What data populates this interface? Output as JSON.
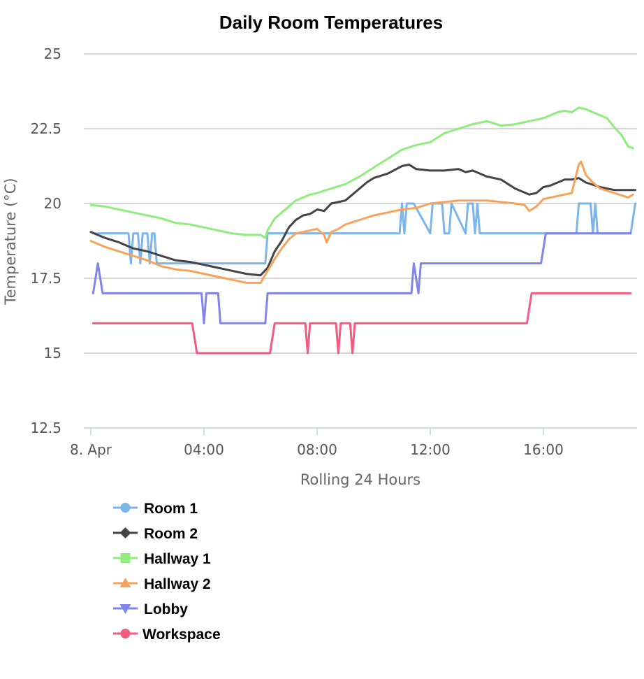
{
  "chart_data": {
    "type": "line",
    "title": "Daily Room Temperatures",
    "xlabel": "Rolling 24 Hours",
    "ylabel": "Temperature (°C)",
    "ylim": [
      12.5,
      25
    ],
    "y_ticks": [
      12.5,
      15,
      17.5,
      20,
      22.5,
      25
    ],
    "y_tick_labels": [
      "12.5",
      "15",
      "17.5",
      "20",
      "22.5",
      "25"
    ],
    "xlim": [
      "00:00",
      "19:20"
    ],
    "x_ticks": [
      "00:00",
      "04:00",
      "08:00",
      "12:00",
      "16:00"
    ],
    "x_tick_labels": [
      "8. Apr",
      "04:00",
      "08:00",
      "12:00",
      "16:00"
    ],
    "grid": true,
    "legend_position": "bottom-left",
    "series": [
      {
        "name": "Room 1",
        "color": "#7cb5ec",
        "marker": "circle",
        "x": [
          "00:05",
          "01:20",
          "01:25",
          "01:30",
          "01:35",
          "01:40",
          "01:45",
          "01:50",
          "01:55",
          "02:00",
          "02:05",
          "02:10",
          "02:15",
          "02:20",
          "02:25",
          "02:30",
          "02:35",
          "02:40",
          "06:10",
          "06:15",
          "10:55",
          "11:00",
          "11:05",
          "11:10",
          "11:20",
          "11:25",
          "12:00",
          "12:05",
          "12:25",
          "12:30",
          "12:40",
          "12:45",
          "13:15",
          "13:20",
          "13:30",
          "13:35",
          "13:40",
          "13:45",
          "13:50",
          "13:55",
          "17:10",
          "17:15",
          "17:40",
          "17:45",
          "17:50",
          "17:55",
          "18:00",
          "18:05",
          "19:05",
          "19:15"
        ],
        "y": [
          19,
          19,
          18,
          19,
          19,
          19,
          18,
          19,
          19,
          19,
          18,
          19,
          19,
          18,
          18,
          18,
          18,
          18,
          18,
          19,
          19,
          20,
          19,
          20,
          20,
          20,
          19,
          20,
          20,
          19,
          19,
          20,
          19,
          20,
          20,
          19,
          20,
          19,
          19,
          19,
          19,
          20,
          20,
          19,
          20,
          19,
          19,
          19,
          19,
          20
        ]
      },
      {
        "name": "Room 2",
        "color": "#434348",
        "marker": "diamond",
        "x": [
          "00:00",
          "00:30",
          "01:00",
          "01:30",
          "02:00",
          "02:30",
          "03:00",
          "03:30",
          "04:00",
          "04:30",
          "05:00",
          "05:30",
          "06:00",
          "06:15",
          "06:30",
          "06:45",
          "07:00",
          "07:15",
          "07:30",
          "07:45",
          "08:00",
          "08:15",
          "08:30",
          "08:45",
          "09:00",
          "09:30",
          "09:45",
          "10:00",
          "10:30",
          "11:00",
          "11:15",
          "11:30",
          "12:00",
          "12:30",
          "13:00",
          "13:15",
          "13:30",
          "14:00",
          "14:30",
          "15:00",
          "15:30",
          "15:45",
          "16:00",
          "16:15",
          "16:30",
          "16:45",
          "17:00",
          "17:15",
          "17:30",
          "18:00",
          "18:30",
          "19:00",
          "19:15"
        ],
        "y": [
          19.05,
          18.85,
          18.7,
          18.5,
          18.4,
          18.25,
          18.1,
          18.05,
          17.95,
          17.85,
          17.75,
          17.65,
          17.6,
          17.85,
          18.4,
          18.75,
          19.2,
          19.45,
          19.6,
          19.65,
          19.8,
          19.75,
          20.0,
          20.05,
          20.1,
          20.5,
          20.7,
          20.85,
          21.0,
          21.25,
          21.3,
          21.15,
          21.1,
          21.1,
          21.15,
          21.05,
          21.1,
          20.9,
          20.8,
          20.5,
          20.3,
          20.35,
          20.55,
          20.6,
          20.7,
          20.8,
          20.8,
          20.85,
          20.7,
          20.55,
          20.45,
          20.45,
          20.45
        ]
      },
      {
        "name": "Hallway 1",
        "color": "#90ed7d",
        "marker": "square",
        "x": [
          "00:00",
          "00:30",
          "01:00",
          "01:30",
          "02:00",
          "02:30",
          "03:00",
          "03:30",
          "04:00",
          "04:30",
          "05:00",
          "05:30",
          "06:00",
          "06:10",
          "06:15",
          "06:30",
          "07:00",
          "07:15",
          "07:30",
          "07:45",
          "08:00",
          "08:30",
          "09:00",
          "09:30",
          "10:00",
          "10:30",
          "11:00",
          "11:30",
          "12:00",
          "12:30",
          "13:00",
          "13:30",
          "14:00",
          "14:30",
          "15:00",
          "15:30",
          "16:00",
          "16:30",
          "16:45",
          "17:00",
          "17:15",
          "17:30",
          "17:45",
          "18:00",
          "18:15",
          "18:30",
          "18:45",
          "19:00",
          "19:10"
        ],
        "y": [
          19.95,
          19.9,
          19.8,
          19.7,
          19.6,
          19.5,
          19.35,
          19.3,
          19.2,
          19.1,
          19.0,
          18.95,
          18.95,
          18.85,
          19.1,
          19.5,
          19.9,
          20.1,
          20.2,
          20.3,
          20.35,
          20.5,
          20.65,
          20.9,
          21.2,
          21.5,
          21.8,
          21.95,
          22.05,
          22.35,
          22.5,
          22.65,
          22.75,
          22.6,
          22.65,
          22.75,
          22.85,
          23.05,
          23.1,
          23.05,
          23.2,
          23.15,
          23.05,
          22.95,
          22.85,
          22.55,
          22.3,
          21.9,
          21.85
        ]
      },
      {
        "name": "Hallway 2",
        "color": "#f7a35c",
        "marker": "triangle",
        "x": [
          "00:00",
          "00:30",
          "01:00",
          "01:30",
          "02:00",
          "02:30",
          "03:00",
          "03:30",
          "04:00",
          "04:30",
          "05:00",
          "05:30",
          "06:00",
          "06:15",
          "06:30",
          "06:45",
          "07:00",
          "07:15",
          "07:30",
          "08:00",
          "08:15",
          "08:20",
          "08:30",
          "08:45",
          "09:00",
          "09:30",
          "10:00",
          "10:30",
          "11:00",
          "11:30",
          "12:00",
          "12:30",
          "13:00",
          "13:30",
          "14:00",
          "14:30",
          "15:00",
          "15:20",
          "15:30",
          "15:45",
          "16:00",
          "16:30",
          "17:00",
          "17:15",
          "17:20",
          "17:30",
          "17:45",
          "18:00",
          "18:30",
          "19:00",
          "19:10"
        ],
        "y": [
          18.75,
          18.55,
          18.4,
          18.25,
          18.1,
          17.9,
          17.8,
          17.75,
          17.65,
          17.55,
          17.45,
          17.35,
          17.35,
          17.75,
          18.15,
          18.5,
          18.8,
          19.0,
          19.05,
          19.15,
          18.95,
          18.7,
          19.05,
          19.15,
          19.3,
          19.45,
          19.6,
          19.7,
          19.8,
          19.85,
          20.0,
          20.05,
          20.1,
          20.1,
          20.1,
          20.05,
          20.0,
          19.95,
          19.75,
          19.9,
          20.15,
          20.25,
          20.35,
          21.3,
          21.4,
          20.95,
          20.7,
          20.5,
          20.35,
          20.2,
          20.3
        ]
      },
      {
        "name": "Lobby",
        "color": "#8085e9",
        "marker": "triangle-down",
        "x": [
          "00:05",
          "00:15",
          "00:25",
          "03:55",
          "04:00",
          "04:05",
          "04:30",
          "04:35",
          "06:10",
          "06:15",
          "11:20",
          "11:25",
          "11:35",
          "11:40",
          "15:55",
          "16:05",
          "19:05"
        ],
        "y": [
          17,
          18,
          17,
          17,
          16,
          17,
          17,
          16,
          16,
          17,
          17,
          18,
          17,
          18,
          18,
          19,
          19
        ]
      },
      {
        "name": "Workspace",
        "color": "#f15c80",
        "marker": "circle",
        "x": [
          "00:05",
          "03:35",
          "03:45",
          "06:20",
          "06:30",
          "07:35",
          "07:40",
          "07:45",
          "08:40",
          "08:45",
          "08:50",
          "09:10",
          "09:15",
          "09:20",
          "15:25",
          "15:35",
          "19:05"
        ],
        "y": [
          16,
          16,
          15,
          15,
          16,
          16,
          15,
          16,
          16,
          15,
          16,
          16,
          15,
          16,
          16,
          17,
          17
        ]
      }
    ]
  }
}
